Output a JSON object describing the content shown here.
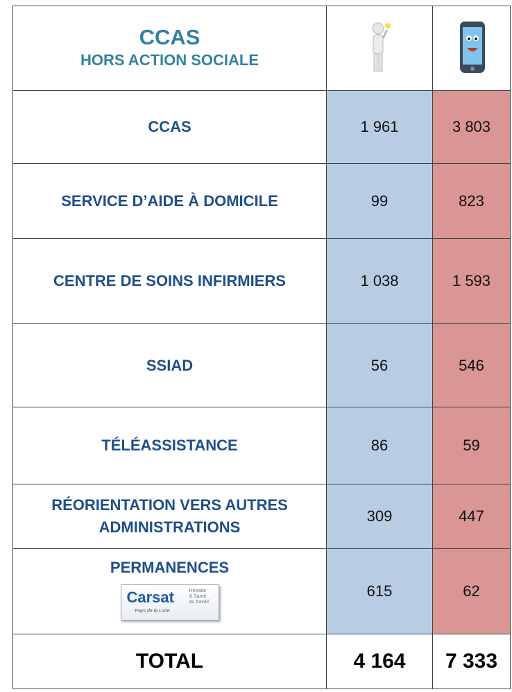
{
  "header": {
    "title": "CCAS",
    "subtitle": "HORS ACTION SOCIALE"
  },
  "table": {
    "rows": [
      [
        "CCAS",
        "1 961",
        "3 803"
      ],
      [
        "SERVICE D’AIDE À DOMICILE",
        "99",
        "823"
      ],
      [
        "CENTRE DE SOINS INFIRMIERS",
        "1 038",
        "1 593"
      ],
      [
        "SSIAD",
        "56",
        "546"
      ],
      [
        "TÉLÉASSISTANCE",
        "86",
        "59"
      ],
      [
        "RÉORIENTATION VERS AUTRES ADMINISTRATIONS",
        "309",
        "447"
      ],
      [
        "PERMANENCES",
        "615",
        "62"
      ]
    ],
    "logo": {
      "name": "Carsat",
      "tagline": [
        "Retraite",
        "& Santé",
        "au travail"
      ],
      "region": "Pays de la Loire"
    },
    "total": [
      "TOTAL",
      "4 164",
      "7 333"
    ]
  }
}
